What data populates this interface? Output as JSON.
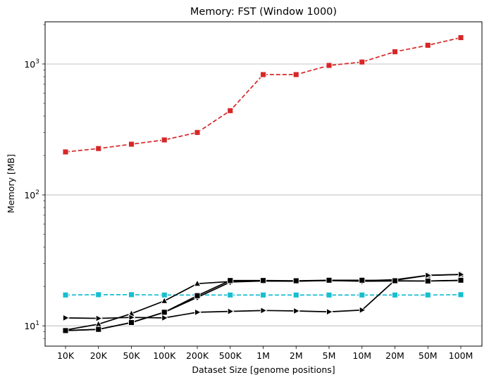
{
  "chart_data": {
    "type": "line",
    "title": "Memory:  FST (Window 1000)",
    "xlabel": "Dataset Size  [genome positions]",
    "ylabel": "Memory  [MB]",
    "yscale": "log",
    "ylim": [
      7,
      2100
    ],
    "grid": "horizontal major",
    "categories": [
      "10K",
      "20K",
      "50K",
      "100K",
      "200K",
      "500K",
      "1M",
      "2M",
      "5M",
      "10M",
      "20M",
      "50M",
      "100M"
    ],
    "y_ticks": [
      {
        "value": 10,
        "base": "10",
        "exp": "1"
      },
      {
        "value": 100,
        "base": "10",
        "exp": "2"
      },
      {
        "value": 1000,
        "base": "10",
        "exp": "3"
      }
    ],
    "series": [
      {
        "color": "#d62728",
        "marker": "square",
        "dashed": true,
        "values": [
          213,
          226,
          244,
          263,
          300,
          440,
          830,
          830,
          975,
          1035,
          1240,
          1390,
          1590
        ]
      },
      {
        "color": "#17becf",
        "marker": "square",
        "dashed": true,
        "values": [
          17.2,
          17.3,
          17.3,
          17.2,
          17.2,
          17.2,
          17.2,
          17.2,
          17.2,
          17.2,
          17.2,
          17.2,
          17.3
        ]
      },
      {
        "color": "#000000",
        "marker": "triangle-up",
        "dashed": false,
        "values": [
          9.3,
          10.3,
          12.4,
          15.5,
          21.0,
          21.8,
          22.0,
          22.0,
          22.2,
          22.1,
          22.5,
          24.3,
          24.7
        ]
      },
      {
        "color": "#000000",
        "marker": "triangle-right",
        "dashed": false,
        "values": [
          11.5,
          11.4,
          11.6,
          11.5,
          12.7,
          12.9,
          13.1,
          13.0,
          12.8,
          13.2,
          22.3,
          24.3,
          24.7
        ]
      },
      {
        "color": "#000000",
        "marker": "diamond",
        "dashed": false,
        "values": [
          9.2,
          9.4,
          10.6,
          12.7,
          16.5,
          21.6,
          22.0,
          21.9,
          22.2,
          21.9,
          22.0,
          22.0,
          22.2
        ]
      },
      {
        "color": "#000000",
        "marker": "square",
        "dashed": false,
        "values": [
          9.2,
          9.4,
          10.6,
          12.7,
          17.0,
          22.2,
          22.2,
          22.1,
          22.3,
          22.3,
          22.1,
          22.0,
          22.3
        ]
      }
    ]
  }
}
